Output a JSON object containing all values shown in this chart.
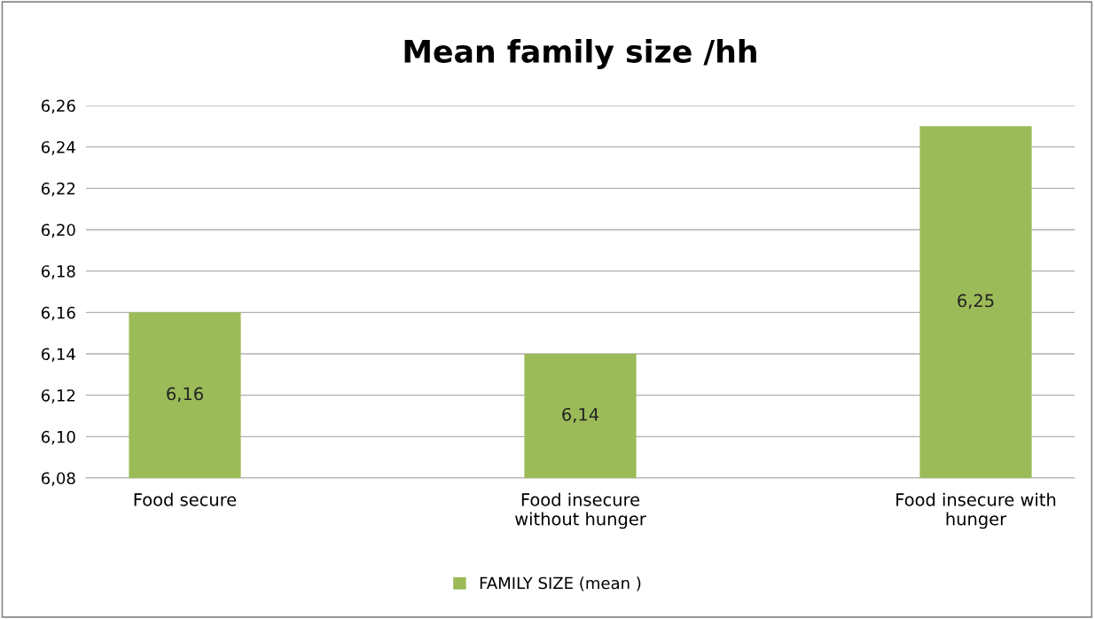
{
  "chart_data": {
    "type": "bar",
    "title": "Mean family size /hh",
    "categories": [
      "Food secure",
      "Food insecure without hunger",
      "Food insecure with hunger"
    ],
    "series": [
      {
        "name": "FAMILY SIZE (mean )",
        "color": "#9bbb59",
        "values": [
          6.16,
          6.14,
          6.25
        ],
        "value_labels": [
          "6,16",
          "6,14",
          "6,25"
        ]
      }
    ],
    "ylim": [
      6.08,
      6.26
    ],
    "yticks": [
      {
        "value": 6.08,
        "label": "6,08"
      },
      {
        "value": 6.1,
        "label": "6,10"
      },
      {
        "value": 6.12,
        "label": "6,12"
      },
      {
        "value": 6.14,
        "label": "6,14"
      },
      {
        "value": 6.16,
        "label": "6,16"
      },
      {
        "value": 6.18,
        "label": "6,18"
      },
      {
        "value": 6.2,
        "label": "6,20"
      },
      {
        "value": 6.22,
        "label": "6,22"
      },
      {
        "value": 6.24,
        "label": "6,24"
      },
      {
        "value": 6.26,
        "label": "6,26"
      }
    ],
    "grid": "y",
    "legend": "bottom"
  }
}
